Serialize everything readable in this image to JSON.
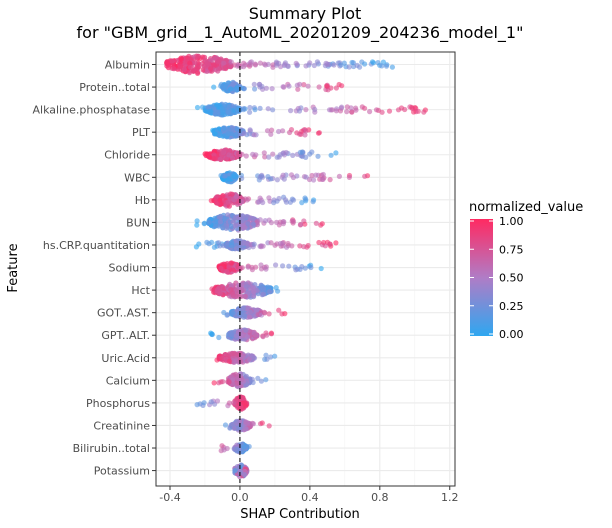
{
  "chart_data": {
    "type": "scatter",
    "title": "Summary Plot",
    "subtitle": "for \"GBM_grid__1_AutoML_20201209_204236_model_1\"",
    "xlabel": "SHAP Contribution",
    "ylabel": "Feature",
    "xlim": [
      -0.48,
      1.23
    ],
    "x_ticks": [
      -0.4,
      0.0,
      0.4,
      0.8,
      1.2
    ],
    "x_tick_labels": [
      "-0.4",
      "0.0",
      "0.4",
      "0.8",
      "1.2"
    ],
    "reference_line_x": 0.0,
    "grid": true,
    "legend": {
      "title": "normalized_value",
      "placement": "right",
      "ticks": [
        "1.00",
        "0.75",
        "0.50",
        "0.25",
        "0.00"
      ],
      "color_low": "#2EA7F0",
      "color_mid": "#B07CC6",
      "color_high": "#FF2A62"
    },
    "features": [
      {
        "name": "Albumin",
        "min": -0.42,
        "max": 0.9,
        "core": [
          -0.42,
          -0.05
        ],
        "core_height": 1.0,
        "high_side": "low",
        "tail_dens": 0.8
      },
      {
        "name": "Protein..total",
        "min": -0.15,
        "max": 0.6,
        "core": [
          -0.1,
          0.0
        ],
        "core_height": 0.55,
        "high_side": "high",
        "tail_dens": 0.55
      },
      {
        "name": "Alkaline.phosphatase",
        "min": -0.25,
        "max": 1.13,
        "core": [
          -0.2,
          0.0
        ],
        "core_height": 0.6,
        "high_side": "high",
        "tail_dens": 0.5
      },
      {
        "name": "PLT",
        "min": -0.17,
        "max": 0.47,
        "core": [
          -0.15,
          0.02
        ],
        "core_height": 0.55,
        "high_side": "high",
        "tail_dens": 0.6
      },
      {
        "name": "Chloride",
        "min": -0.2,
        "max": 0.56,
        "core": [
          -0.2,
          0.0
        ],
        "core_height": 0.55,
        "high_side": "low",
        "tail_dens": 0.6
      },
      {
        "name": "WBC",
        "min": -0.12,
        "max": 0.8,
        "core": [
          -0.1,
          -0.02
        ],
        "core_height": 0.55,
        "high_side": "high",
        "tail_dens": 0.5
      },
      {
        "name": "Hb",
        "min": -0.17,
        "max": 0.43,
        "core": [
          -0.15,
          0.02
        ],
        "core_height": 0.7,
        "high_side": "low",
        "tail_dens": 0.65
      },
      {
        "name": "BUN",
        "min": -0.25,
        "max": 0.48,
        "core": [
          -0.18,
          0.1
        ],
        "core_height": 0.9,
        "high_side": "high",
        "tail_dens": 0.6
      },
      {
        "name": "hs.CRP.quantitation",
        "min": -0.25,
        "max": 0.55,
        "core": [
          -0.08,
          0.05
        ],
        "core_height": 0.5,
        "high_side": "high",
        "tail_dens": 0.75
      },
      {
        "name": "Sodium",
        "min": -0.13,
        "max": 0.47,
        "core": [
          -0.12,
          0.0
        ],
        "core_height": 0.55,
        "high_side": "low",
        "tail_dens": 0.55
      },
      {
        "name": "Hct",
        "min": -0.17,
        "max": 0.23,
        "core": [
          -0.15,
          0.18
        ],
        "core_height": 0.85,
        "high_side": "low",
        "tail_dens": 0.5
      },
      {
        "name": "GOT..AST.",
        "min": -0.12,
        "max": 0.27,
        "core": [
          -0.05,
          0.12
        ],
        "core_height": 0.55,
        "high_side": "high",
        "tail_dens": 0.5
      },
      {
        "name": "GPT..ALT.",
        "min": -0.17,
        "max": 0.23,
        "core": [
          -0.07,
          0.1
        ],
        "core_height": 0.6,
        "high_side": "high",
        "tail_dens": 0.5
      },
      {
        "name": "Uric.Acid",
        "min": -0.14,
        "max": 0.22,
        "core": [
          -0.12,
          0.08
        ],
        "core_height": 0.55,
        "high_side": "low",
        "tail_dens": 0.45
      },
      {
        "name": "Calcium",
        "min": -0.15,
        "max": 0.17,
        "core": [
          -0.07,
          0.06
        ],
        "core_height": 0.75,
        "high_side": "low",
        "tail_dens": 0.5
      },
      {
        "name": "Phosphorus",
        "min": -0.27,
        "max": 0.05,
        "core": [
          -0.03,
          0.04
        ],
        "core_height": 0.7,
        "high_side": "high",
        "tail_dens": 0.5
      },
      {
        "name": "Creatinine",
        "min": -0.12,
        "max": 0.17,
        "core": [
          -0.05,
          0.06
        ],
        "core_height": 0.55,
        "high_side": "high",
        "tail_dens": 0.45
      },
      {
        "name": "Bilirubin..total",
        "min": -0.17,
        "max": 0.06,
        "core": [
          -0.03,
          0.04
        ],
        "core_height": 0.5,
        "high_side": "low",
        "tail_dens": 0.45
      },
      {
        "name": "Potassium",
        "min": -0.04,
        "max": 0.05,
        "core": [
          -0.03,
          0.04
        ],
        "core_height": 0.7,
        "high_side": "mixed",
        "tail_dens": 0.3
      }
    ]
  }
}
